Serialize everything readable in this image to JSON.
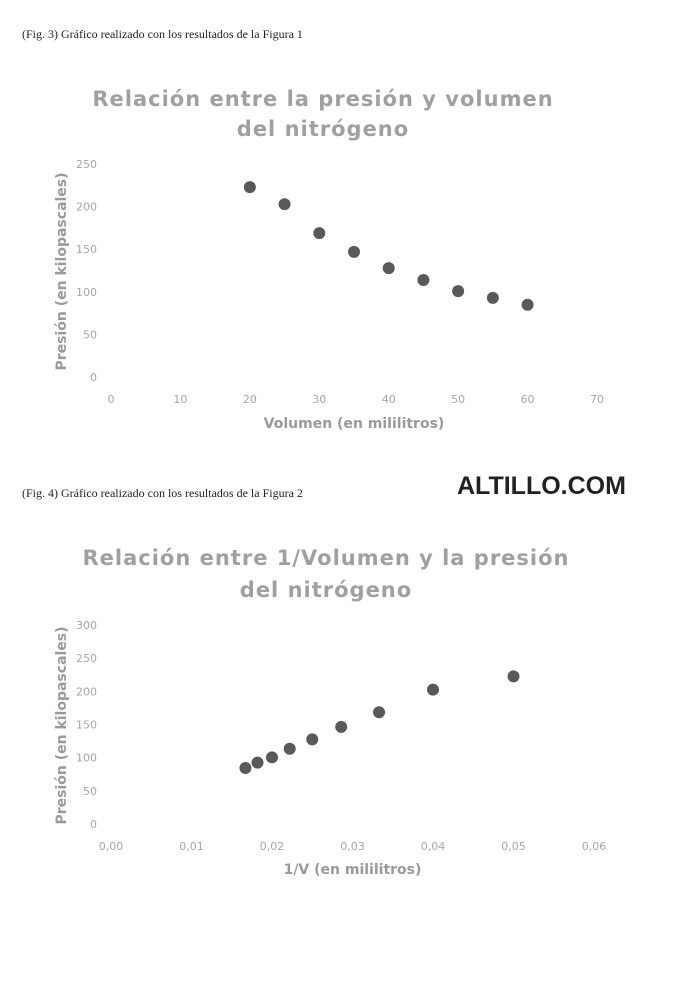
{
  "captions": [
    "(Fig. 3) Gráfico realizado con los resultados de la Figura 1",
    "(Fig. 4) Gráfico realizado con los resultados de la Figura 2"
  ],
  "watermark": "ALTILLO.COM",
  "chart_data": [
    {
      "type": "scatter",
      "title": [
        "Relación entre la presión y volumen",
        "del nitrógeno"
      ],
      "x_label": "Volumen (en mililitros)",
      "y_label": "Presión (en kilopascales)",
      "x": [
        20,
        25,
        30,
        35,
        40,
        45,
        50,
        55,
        60
      ],
      "values": [
        224,
        204,
        170,
        148,
        129,
        115,
        102,
        94,
        86
      ],
      "color": "#595959",
      "xlim": [
        0,
        70
      ],
      "xticks": [
        0,
        10,
        20,
        30,
        40,
        50,
        60,
        70
      ],
      "ylim": [
        0,
        250
      ],
      "yticks": [
        0,
        50,
        100,
        150,
        200,
        250
      ]
    },
    {
      "type": "scatter",
      "title": [
        "Relación entre 1/Volumen y la presión",
        "del nitrógeno"
      ],
      "x_label": "1/V (en mililitros)",
      "y_label": "Presión (en kilopascales)",
      "x": [
        0.05,
        0.04,
        0.0333,
        0.0286,
        0.025,
        0.0222,
        0.02,
        0.0182,
        0.0167
      ],
      "values": [
        224,
        204,
        170,
        148,
        129,
        115,
        102,
        94,
        86
      ],
      "color": "#595959",
      "xlim": [
        0,
        0.06
      ],
      "xticks": [
        {
          "value": 0,
          "label": "0,00"
        },
        {
          "value": 0.01,
          "label": "0,01"
        },
        {
          "value": 0.02,
          "label": "0,02"
        },
        {
          "value": 0.03,
          "label": "0,03"
        },
        {
          "value": 0.04,
          "label": "0,04"
        },
        {
          "value": 0.05,
          "label": "0,05"
        },
        {
          "value": 0.06,
          "label": "0,06"
        }
      ],
      "ylim": [
        0,
        300
      ],
      "yticks": [
        0,
        50,
        100,
        150,
        200,
        250,
        300
      ]
    }
  ]
}
